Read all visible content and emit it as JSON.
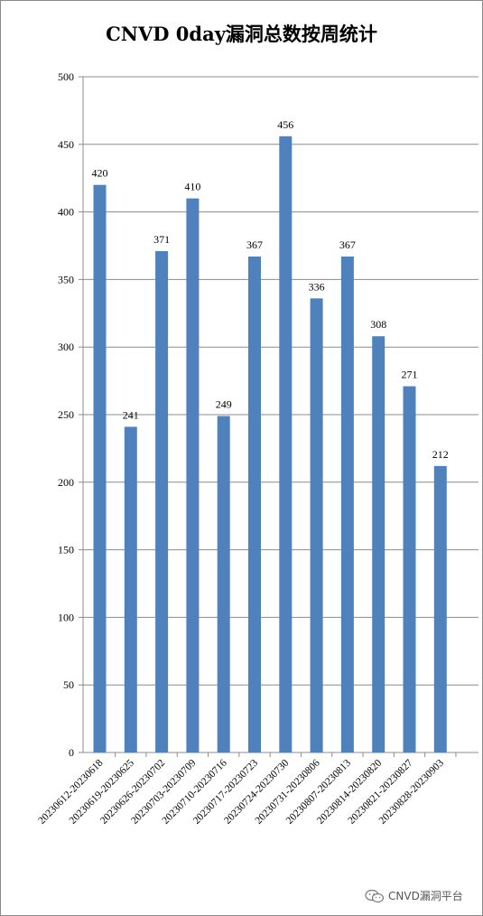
{
  "chart_data": {
    "type": "bar",
    "title": "CNVD 0day漏洞总数按周统计",
    "xlabel": "",
    "ylabel": "",
    "ylim": [
      0,
      500
    ],
    "yticks": [
      0,
      50,
      100,
      150,
      200,
      250,
      300,
      350,
      400,
      450,
      500
    ],
    "grid": true,
    "legend": "none",
    "bar_color": "#4f81bd",
    "categories": [
      "20230612-20230618",
      "20230619-20230625",
      "20230626-20230702",
      "20230703-20230709",
      "20230710-20230716",
      "20230717-20230723",
      "20230724-20230730",
      "20230731-20230806",
      "20230807-20230813",
      "20230814-20230820",
      "20230821-20230827",
      "20230828-20230903"
    ],
    "values": [
      420,
      241,
      371,
      410,
      249,
      367,
      456,
      336,
      367,
      308,
      271,
      212
    ]
  },
  "watermark": {
    "icon": "wechat-icon",
    "text": "CNVD漏洞平台"
  }
}
